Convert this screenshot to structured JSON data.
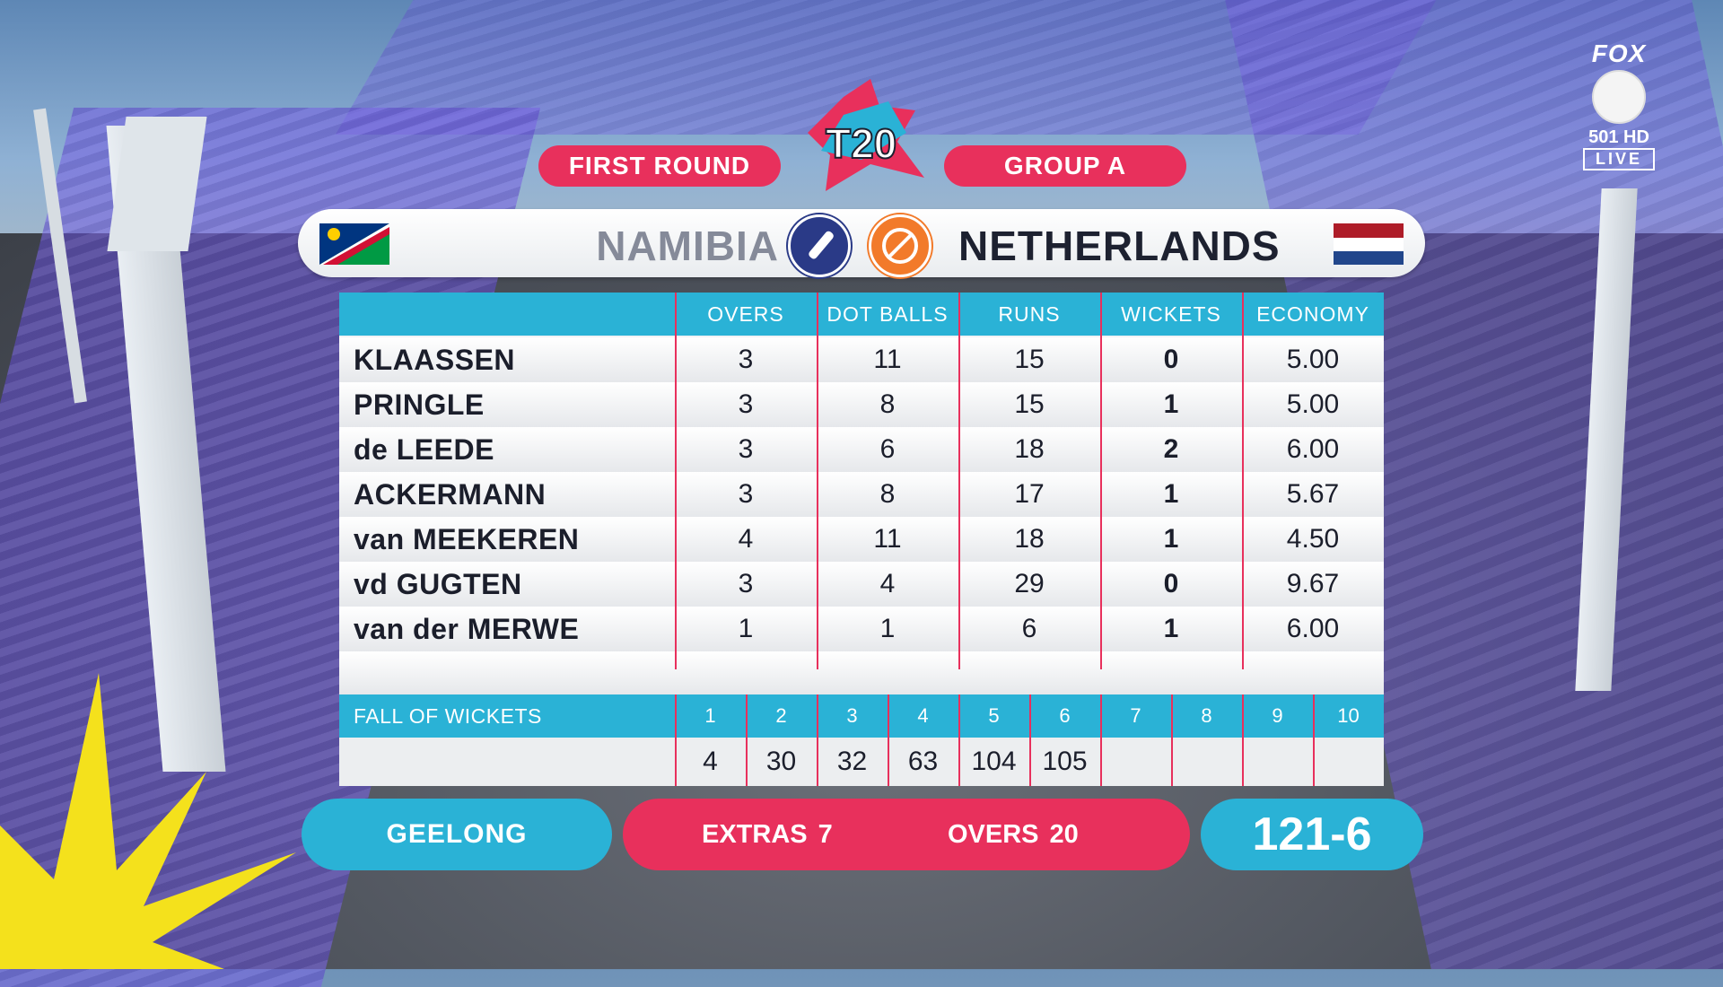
{
  "header": {
    "left_pill": "FIRST ROUND",
    "right_pill": "GROUP A",
    "logo_text": "T20"
  },
  "broadcaster": {
    "brand": "FOX",
    "channel": "501 HD",
    "live": "LIVE"
  },
  "teams": {
    "batting": "NAMIBIA",
    "bowling": "NETHERLANDS"
  },
  "table": {
    "columns": [
      "OVERS",
      "DOT BALLS",
      "RUNS",
      "WICKETS",
      "ECONOMY"
    ],
    "rows": [
      {
        "name": "KLAASSEN",
        "overs": "3",
        "dots": "11",
        "runs": "15",
        "wickets": "0",
        "economy": "5.00"
      },
      {
        "name": "PRINGLE",
        "overs": "3",
        "dots": "8",
        "runs": "15",
        "wickets": "1",
        "economy": "5.00"
      },
      {
        "name": "de LEEDE",
        "overs": "3",
        "dots": "6",
        "runs": "18",
        "wickets": "2",
        "economy": "6.00"
      },
      {
        "name": "ACKERMANN",
        "overs": "3",
        "dots": "8",
        "runs": "17",
        "wickets": "1",
        "economy": "5.67"
      },
      {
        "name": "van MEEKEREN",
        "overs": "4",
        "dots": "11",
        "runs": "18",
        "wickets": "1",
        "economy": "4.50"
      },
      {
        "name": "vd GUGTEN",
        "overs": "3",
        "dots": "4",
        "runs": "29",
        "wickets": "0",
        "economy": "9.67"
      },
      {
        "name": "van der MERWE",
        "overs": "1",
        "dots": "1",
        "runs": "6",
        "wickets": "1",
        "economy": "6.00"
      }
    ]
  },
  "fall_of_wickets": {
    "label": "FALL OF WICKETS",
    "numbers": [
      "1",
      "2",
      "3",
      "4",
      "5",
      "6",
      "7",
      "8",
      "9",
      "10"
    ],
    "values": [
      "4",
      "30",
      "32",
      "63",
      "104",
      "105",
      "",
      "",
      "",
      ""
    ]
  },
  "footer": {
    "venue": "GEELONG",
    "extras_label": "EXTRAS",
    "extras_value": "7",
    "overs_label": "OVERS",
    "overs_value": "20",
    "total": "121-6"
  },
  "colors": {
    "pink": "#e8305c",
    "cyan": "#2ab2d6"
  }
}
